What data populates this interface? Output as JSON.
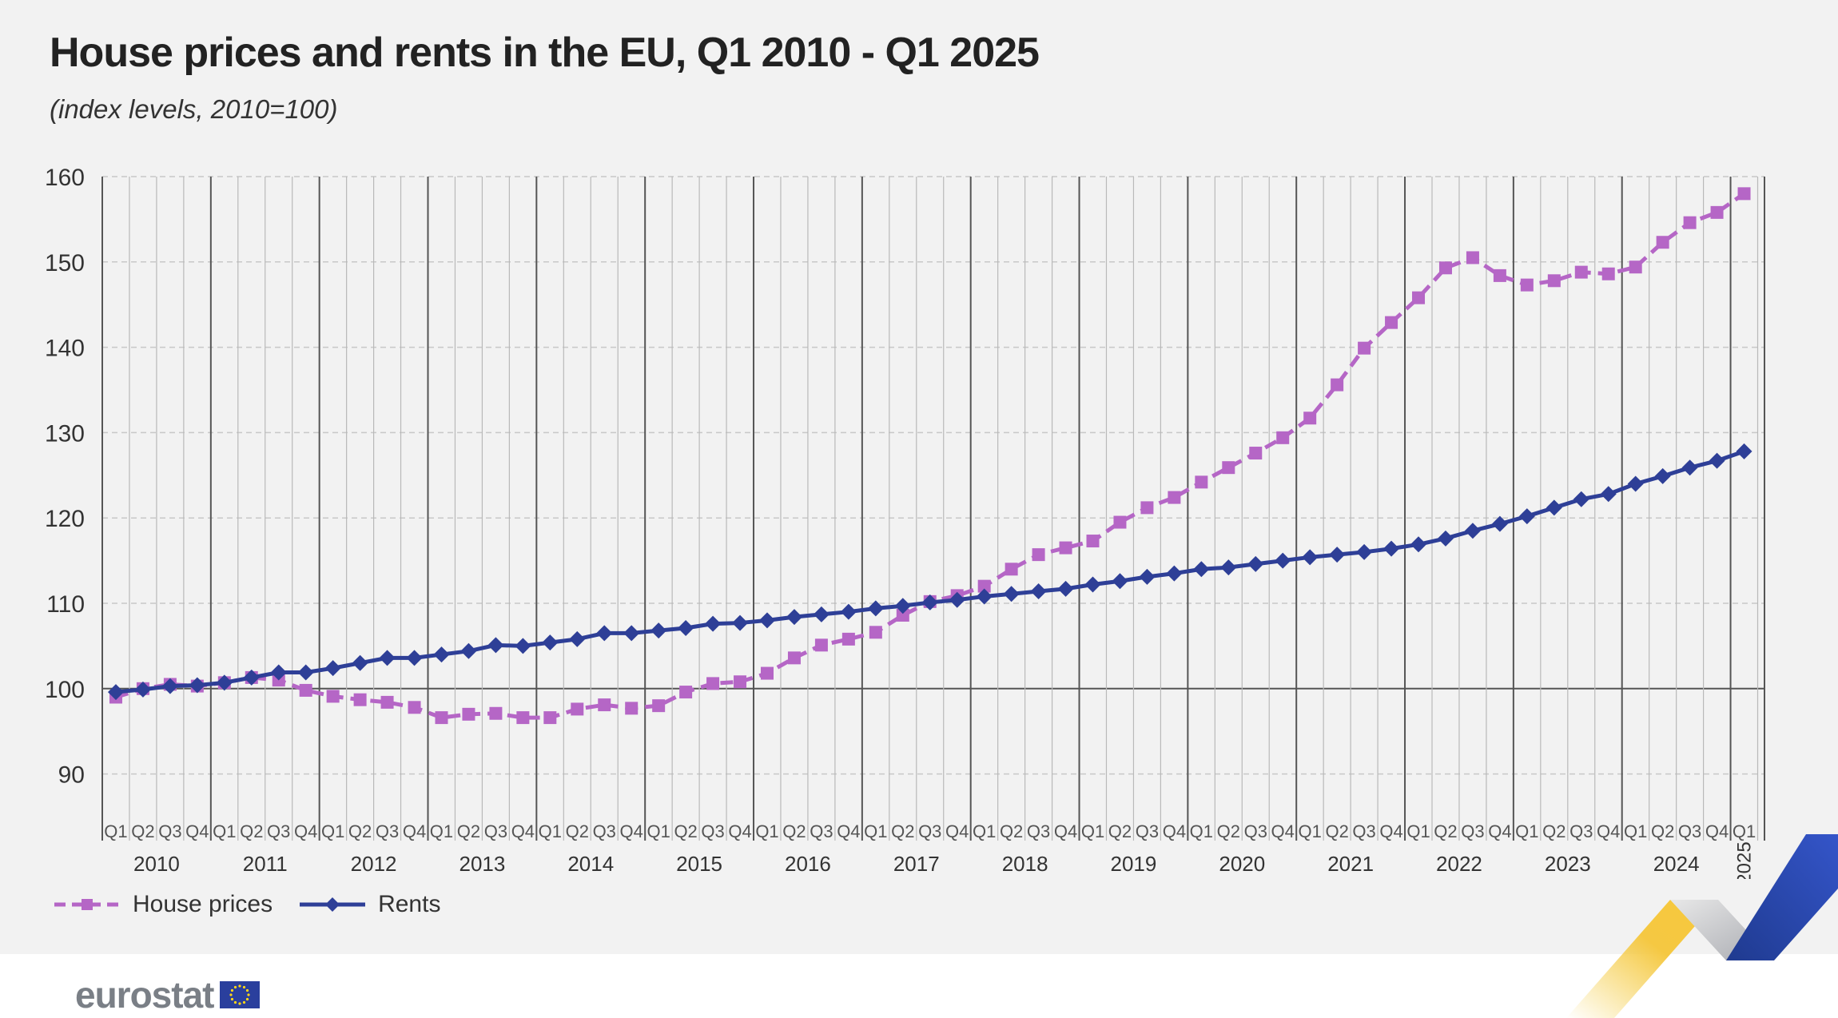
{
  "header": {
    "title": "House prices and rents in the EU, Q1 2010 - Q1 2025",
    "subtitle": "(index levels, 2010=100)"
  },
  "legend": {
    "house_prices": "House prices",
    "rents": "Rents"
  },
  "branding": {
    "logo_text": "eurostat"
  },
  "colors": {
    "house_prices": "#b566c6",
    "rents": "#2e3f97",
    "panel_bg": "#f2f2f2",
    "grid": "#c8c8c8",
    "baseline": "#555555",
    "text": "#333333"
  },
  "chart_data": {
    "type": "line",
    "title": "House prices and rents in the EU, Q1 2010 - Q1 2025",
    "subtitle": "(index levels, 2010=100)",
    "ylim": [
      85,
      160
    ],
    "y_ticks": [
      90,
      100,
      110,
      120,
      130,
      140,
      150,
      160
    ],
    "baseline": 100,
    "grid": "horizontal dashed",
    "legend_position": "bottom-left",
    "quarter_labels": [
      "Q1",
      "Q2",
      "Q3",
      "Q4"
    ],
    "years": [
      "2010",
      "2011",
      "2012",
      "2013",
      "2014",
      "2015",
      "2016",
      "2017",
      "2018",
      "2019",
      "2020",
      "2021",
      "2022",
      "2023",
      "2024",
      "2025"
    ],
    "x_start": "2010 Q1",
    "x_end": "2025 Q1",
    "series": [
      {
        "name": "House prices",
        "color": "#b566c6",
        "style": "dashed",
        "marker": "square",
        "values": [
          99.0,
          100.0,
          100.5,
          100.3,
          100.7,
          101.3,
          101.0,
          99.8,
          99.1,
          98.7,
          98.4,
          97.8,
          96.6,
          97.0,
          97.1,
          96.6,
          96.6,
          97.6,
          98.1,
          97.7,
          98.0,
          99.6,
          100.6,
          100.8,
          101.8,
          103.6,
          105.1,
          105.8,
          106.6,
          108.6,
          110.2,
          110.9,
          112.0,
          114.0,
          115.7,
          116.5,
          117.3,
          119.5,
          121.2,
          122.4,
          124.2,
          125.9,
          127.6,
          129.4,
          131.7,
          135.6,
          139.9,
          142.9,
          145.8,
          149.3,
          150.5,
          148.4,
          147.3,
          147.8,
          148.8,
          148.6,
          149.4,
          152.3,
          154.6,
          155.8,
          158.0
        ]
      },
      {
        "name": "Rents",
        "color": "#2e3f97",
        "style": "solid",
        "marker": "diamond",
        "values": [
          99.6,
          99.9,
          100.3,
          100.4,
          100.7,
          101.3,
          101.9,
          101.9,
          102.4,
          103.0,
          103.6,
          103.6,
          104.0,
          104.4,
          105.1,
          105.0,
          105.4,
          105.8,
          106.5,
          106.5,
          106.8,
          107.1,
          107.6,
          107.7,
          108.0,
          108.4,
          108.7,
          109.0,
          109.4,
          109.7,
          110.1,
          110.4,
          110.8,
          111.1,
          111.4,
          111.7,
          112.2,
          112.6,
          113.1,
          113.5,
          114.0,
          114.2,
          114.6,
          115.0,
          115.4,
          115.7,
          116.0,
          116.4,
          116.9,
          117.6,
          118.5,
          119.3,
          120.2,
          121.2,
          122.2,
          122.8,
          124.0,
          124.9,
          125.9,
          126.7,
          127.8
        ]
      }
    ]
  }
}
